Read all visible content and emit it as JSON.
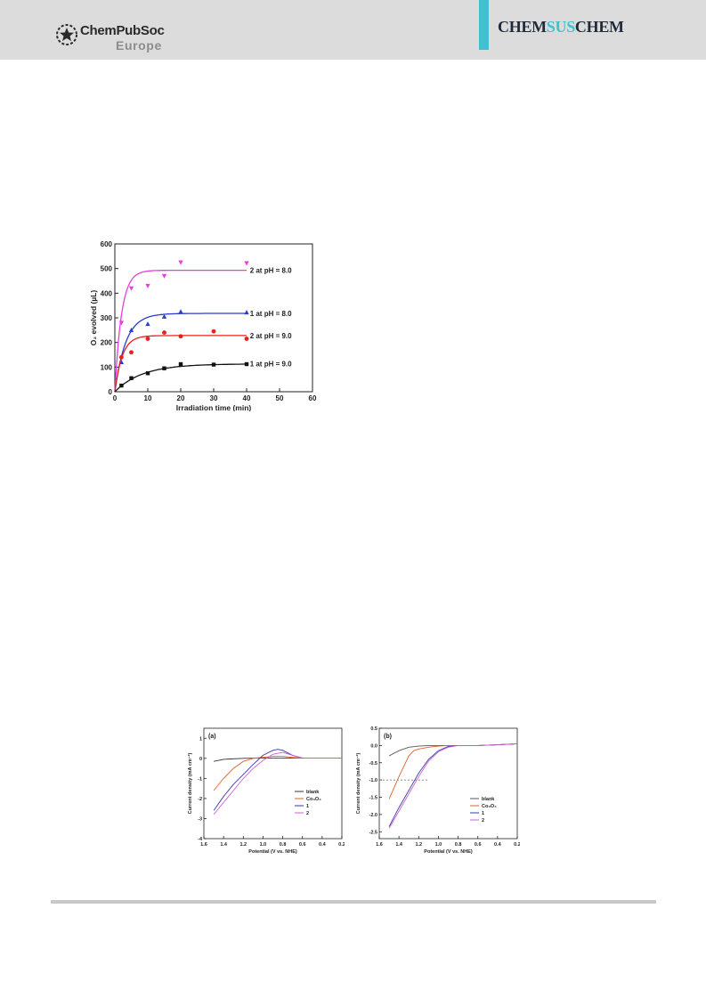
{
  "header": {
    "publisher_line1": "ChemPubSoc",
    "publisher_line2": "Europe",
    "journal_part1": "CHEM",
    "journal_part2": "SUS",
    "journal_part3": "CHEM",
    "logo_icon": "star-circle-icon",
    "colors": {
      "band": "#dcdcdc",
      "accent": "#3ec2d0",
      "journal_dark": "#1f2a3a",
      "journal_accent": "#3ec2d0"
    }
  },
  "chart_data": [
    {
      "type": "scatter",
      "xlabel": "Irradiation time (min)",
      "ylabel": "O₂ evolved (µL)",
      "xlim": [
        0,
        60
      ],
      "ylim": [
        0,
        600
      ],
      "xticks": [
        "0",
        "10",
        "20",
        "30",
        "40",
        "50",
        "60"
      ],
      "yticks": [
        "0",
        "100",
        "200",
        "300",
        "400",
        "500",
        "600"
      ],
      "grid": false,
      "series": [
        {
          "name": "2 at pH = 8.0",
          "color": "#e83ce0",
          "marker": "triangle-down",
          "x": [
            2,
            5,
            10,
            15,
            20,
            40
          ],
          "y": [
            280,
            420,
            430,
            470,
            525,
            522
          ],
          "fit": {
            "a": 493,
            "k": 0.5
          }
        },
        {
          "name": "1 at pH = 8.0",
          "color": "#2a3ccc",
          "marker": "triangle-up",
          "x": [
            2,
            5,
            10,
            15,
            20,
            40
          ],
          "y": [
            120,
            250,
            275,
            305,
            325,
            322
          ],
          "fit": {
            "a": 318,
            "k": 0.3
          }
        },
        {
          "name": "2 at pH = 9.0",
          "color": "#e8201c",
          "marker": "circle",
          "x": [
            2,
            5,
            10,
            15,
            20,
            30,
            40
          ],
          "y": [
            140,
            160,
            215,
            240,
            225,
            245,
            215
          ],
          "fit": {
            "a": 228,
            "k": 0.45
          }
        },
        {
          "name": "1 at pH = 9.0",
          "color": "#111111",
          "marker": "square",
          "x": [
            2,
            5,
            10,
            15,
            20,
            30,
            40
          ],
          "y": [
            25,
            55,
            75,
            95,
            112,
            110,
            112
          ],
          "fit": {
            "a": 113,
            "k": 0.12
          }
        }
      ]
    },
    {
      "type": "line",
      "panel_label": "(a)",
      "xlabel": "Potential (V vs. NHE)",
      "ylabel": "Current density (mA cm⁻²)",
      "xlim": [
        1.6,
        0.2
      ],
      "ylim": [
        -4,
        1.5
      ],
      "xticks": [
        "1.6",
        "1.4",
        "1.2",
        "1.0",
        "0.8",
        "0.6",
        "0.4",
        "0.2"
      ],
      "yticks": [
        "1",
        "0",
        "-1",
        "-2",
        "-3",
        "-4"
      ],
      "legend": "bottom-right",
      "series": [
        {
          "name": "blank",
          "color": "#333333",
          "x": [
            1.5,
            1.4,
            1.2,
            1.0,
            0.8,
            0.6,
            0.4,
            0.2
          ],
          "y": [
            -0.15,
            -0.05,
            0.0,
            0.02,
            0.02,
            0.02,
            0.02,
            0.02
          ]
        },
        {
          "name": "Co₃O₄",
          "color": "#e0602c",
          "x": [
            1.5,
            1.4,
            1.3,
            1.2,
            1.1,
            1.0,
            0.9,
            0.8,
            0.7,
            0.6,
            0.4,
            0.2
          ],
          "y": [
            -1.6,
            -1.0,
            -0.5,
            -0.15,
            0.0,
            0.05,
            0.1,
            0.1,
            0.05,
            0.02,
            0.02,
            0.02
          ]
        },
        {
          "name": "1",
          "color": "#3a3ab0",
          "x": [
            1.5,
            1.4,
            1.3,
            1.2,
            1.1,
            1.0,
            0.9,
            0.85,
            0.8,
            0.7,
            0.6,
            0.4,
            0.2
          ],
          "y": [
            -2.6,
            -1.9,
            -1.3,
            -0.8,
            -0.3,
            0.15,
            0.4,
            0.45,
            0.4,
            0.15,
            0.02,
            0.02,
            0.02
          ]
        },
        {
          "name": "2",
          "color": "#d060d0",
          "x": [
            1.5,
            1.4,
            1.3,
            1.2,
            1.1,
            1.0,
            0.9,
            0.8,
            0.7,
            0.6,
            0.4,
            0.2
          ],
          "y": [
            -2.8,
            -2.2,
            -1.6,
            -1.0,
            -0.5,
            -0.1,
            0.2,
            0.3,
            0.15,
            0.02,
            0.02,
            0.02
          ]
        }
      ]
    },
    {
      "type": "line",
      "panel_label": "(b)",
      "xlabel": "Potential (V vs. NHE)",
      "ylabel": "Current density (mA cm⁻²)",
      "xlim": [
        1.6,
        0.2
      ],
      "ylim": [
        -2.7,
        0.5
      ],
      "xticks": [
        "1.6",
        "1.4",
        "1.2",
        "1.0",
        "0.8",
        "0.6",
        "0.4",
        "0.2"
      ],
      "yticks": [
        "0.5",
        "0.0",
        "-0.5",
        "-1.0",
        "-1.5",
        "-2.0",
        "-2.5"
      ],
      "legend": "bottom-right",
      "reference_line": {
        "y": -1.0,
        "x_from": 1.6,
        "x_to": 1.1
      },
      "series": [
        {
          "name": "blank",
          "color": "#555555",
          "x": [
            1.5,
            1.4,
            1.3,
            1.2,
            1.1,
            1.0,
            0.8,
            0.6,
            0.4,
            0.2
          ],
          "y": [
            -0.3,
            -0.15,
            -0.05,
            -0.02,
            0.0,
            0.0,
            0.0,
            0.0,
            0.02,
            0.05
          ]
        },
        {
          "name": "Co₃O₄",
          "color": "#e0602c",
          "x": [
            1.5,
            1.4,
            1.3,
            1.25,
            1.2,
            1.1,
            1.0,
            0.9,
            0.8,
            0.6,
            0.4,
            0.2
          ],
          "y": [
            -1.55,
            -0.9,
            -0.3,
            -0.15,
            -0.1,
            -0.05,
            -0.02,
            0.0,
            0.0,
            0.0,
            0.02,
            0.05
          ]
        },
        {
          "name": "1",
          "color": "#3a3ab0",
          "x": [
            1.5,
            1.4,
            1.3,
            1.2,
            1.1,
            1.0,
            0.9,
            0.8,
            0.6,
            0.4,
            0.2
          ],
          "y": [
            -2.35,
            -1.8,
            -1.3,
            -0.8,
            -0.4,
            -0.15,
            -0.03,
            0.0,
            0.0,
            0.02,
            0.05
          ]
        },
        {
          "name": "2",
          "color": "#d060d0",
          "x": [
            1.5,
            1.4,
            1.3,
            1.2,
            1.1,
            1.0,
            0.9,
            0.8,
            0.6,
            0.4,
            0.2
          ],
          "y": [
            -2.4,
            -1.9,
            -1.4,
            -0.9,
            -0.45,
            -0.18,
            -0.05,
            0.0,
            0.0,
            0.02,
            0.05
          ]
        }
      ]
    }
  ]
}
